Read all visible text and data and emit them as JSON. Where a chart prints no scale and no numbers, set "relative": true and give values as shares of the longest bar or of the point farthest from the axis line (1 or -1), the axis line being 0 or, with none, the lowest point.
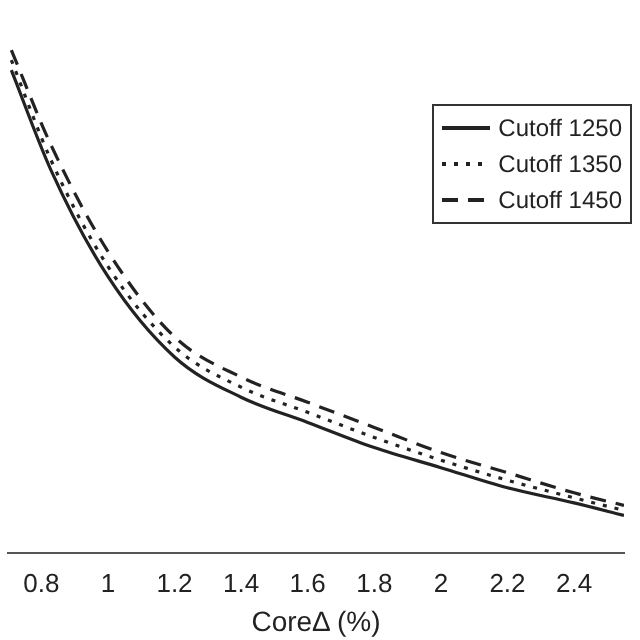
{
  "chart_data": {
    "type": "line",
    "xlabel": "CoreΔ (%)",
    "relative": true,
    "xlim": [
      0.7,
      2.55
    ],
    "xticks": [
      0.8,
      1,
      1.2,
      1.4,
      1.6,
      1.8,
      2,
      2.2,
      2.4
    ],
    "grid": false,
    "legend": "top right",
    "marker": "none",
    "x": [
      0.71,
      0.83,
      1.0,
      1.2,
      1.4,
      1.6,
      1.8,
      2.0,
      2.2,
      2.4,
      2.55
    ],
    "series": [
      {
        "name": "Cutoff 1250",
        "color": "#222222",
        "line_style": "solid",
        "values": [
          0.96,
          0.76,
          0.55,
          0.39,
          0.31,
          0.26,
          0.21,
          0.17,
          0.13,
          0.1,
          0.075
        ]
      },
      {
        "name": "Cutoff 1350",
        "color": "#222222",
        "line_style": "dotted",
        "values": [
          0.98,
          0.78,
          0.57,
          0.41,
          0.33,
          0.28,
          0.23,
          0.185,
          0.145,
          0.11,
          0.085
        ]
      },
      {
        "name": "Cutoff 1450",
        "color": "#222222",
        "line_style": "dashed",
        "values": [
          1.0,
          0.81,
          0.6,
          0.43,
          0.35,
          0.3,
          0.25,
          0.2,
          0.16,
          0.12,
          0.095
        ]
      }
    ]
  }
}
